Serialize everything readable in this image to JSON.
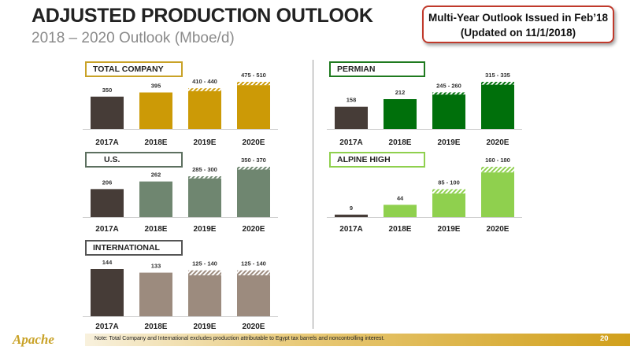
{
  "header": {
    "title": "ADJUSTED PRODUCTION OUTLOOK",
    "subtitle": "2018 – 2020 Outlook (Mboe/d)"
  },
  "callout": {
    "line1": "Multi-Year Outlook Issued in Feb’18",
    "line2": "(Updated on 11/1/2018)",
    "border_color": "#c0392b"
  },
  "footer": {
    "note": "Note: Total Company and International excludes production attributable to Egypt tax barrels and noncontrolling interest.",
    "page_number": "20",
    "logo_text": "Apache"
  },
  "chart_data": [
    {
      "id": "total",
      "type": "bar",
      "title": "TOTAL COMPANY",
      "categories": [
        "2017A",
        "2018E",
        "2019E",
        "2020E"
      ],
      "values": [
        350,
        395,
        410,
        475
      ],
      "ranges": [
        null,
        null,
        [
          410,
          440
        ],
        [
          475,
          510
        ]
      ],
      "labels": [
        "350",
        "395",
        "410 - 440",
        "475 - 510"
      ],
      "bar_colors": [
        "#463c37",
        "#cc9a06",
        "#cc9a06",
        "#cc9a06"
      ],
      "range_color": "#cc9a06",
      "label_border": "#c9a227",
      "ylim": [
        0,
        510
      ]
    },
    {
      "id": "permian",
      "type": "bar",
      "title": "PERMIAN",
      "categories": [
        "2017A",
        "2018E",
        "2019E",
        "2020E"
      ],
      "values": [
        158,
        212,
        245,
        315
      ],
      "ranges": [
        null,
        null,
        [
          245,
          260
        ],
        [
          315,
          335
        ]
      ],
      "labels": [
        "158",
        "212",
        "245 - 260",
        "315 - 335"
      ],
      "bar_colors": [
        "#463c37",
        "#00700b",
        "#00700b",
        "#00700b"
      ],
      "range_color": "#00700b",
      "label_border": "#1f7a1f",
      "ylim": [
        0,
        335
      ]
    },
    {
      "id": "us",
      "type": "bar",
      "title": "U.S.",
      "categories": [
        "2017A",
        "2018E",
        "2019E",
        "2020E"
      ],
      "values": [
        206,
        262,
        285,
        350
      ],
      "ranges": [
        null,
        null,
        [
          285,
          300
        ],
        [
          350,
          370
        ]
      ],
      "labels": [
        "206",
        "262",
        "285 - 300",
        "350 - 370"
      ],
      "bar_colors": [
        "#463c37",
        "#6f8670",
        "#6f8670",
        "#6f8670"
      ],
      "range_color": "#6f8670",
      "label_border": "#5d7060",
      "ylim": [
        0,
        370
      ]
    },
    {
      "id": "alpine",
      "type": "bar",
      "title": "ALPINE HIGH",
      "categories": [
        "2017A",
        "2018E",
        "2019E",
        "2020E"
      ],
      "values": [
        9,
        44,
        85,
        160
      ],
      "ranges": [
        null,
        null,
        [
          85,
          100
        ],
        [
          160,
          180
        ]
      ],
      "labels": [
        "9",
        "44",
        "85 - 100",
        "160 - 180"
      ],
      "bar_colors": [
        "#463c37",
        "#8fd04e",
        "#8fd04e",
        "#8fd04e"
      ],
      "range_color": "#8fd04e",
      "label_border": "#8fd04e",
      "ylim": [
        0,
        180
      ]
    },
    {
      "id": "intl",
      "type": "bar",
      "title": "INTERNATIONAL",
      "categories": [
        "2017A",
        "2018E",
        "2019E",
        "2020E"
      ],
      "values": [
        144,
        133,
        125,
        125
      ],
      "ranges": [
        null,
        null,
        [
          125,
          140
        ],
        [
          125,
          140
        ]
      ],
      "labels": [
        "144",
        "133",
        "125 - 140",
        "125 - 140"
      ],
      "bar_colors": [
        "#463c37",
        "#9c8b7e",
        "#9c8b7e",
        "#9c8b7e"
      ],
      "range_color": "#9c8b7e",
      "label_border": "#555555",
      "ylim": [
        0,
        144
      ]
    }
  ]
}
